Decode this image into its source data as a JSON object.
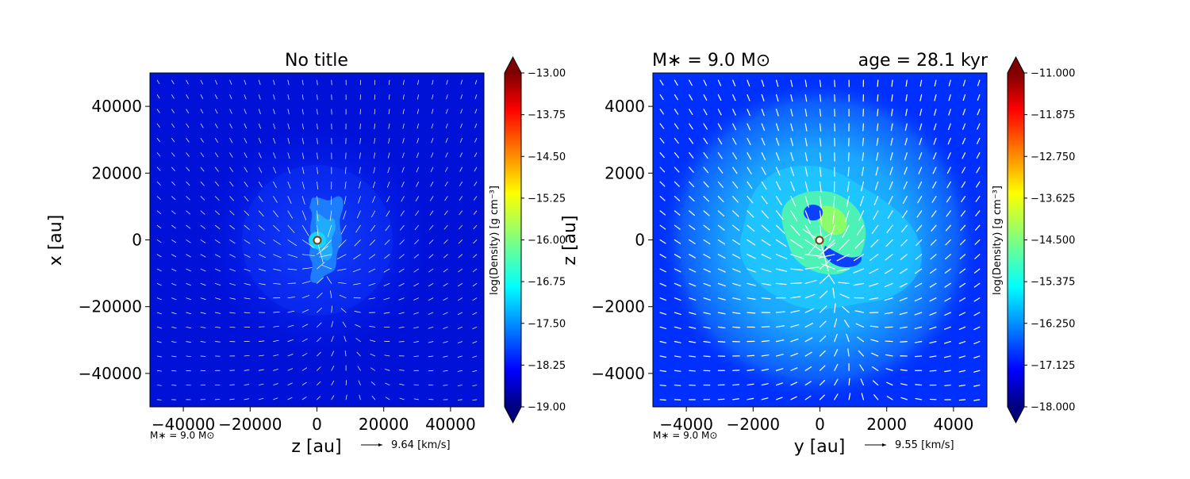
{
  "chart_data": [
    {
      "type": "heatmap",
      "title": "No title",
      "title_left": "",
      "title_right": "",
      "xlabel": "z [au]",
      "ylabel": "x [au]",
      "xlim": [
        -50000,
        50000
      ],
      "ylim": [
        -50000,
        50000
      ],
      "xticks": [
        -40000,
        -20000,
        0,
        20000,
        40000
      ],
      "yticks": [
        -40000,
        -20000,
        0,
        20000,
        40000
      ],
      "xtick_labels": [
        "−40000",
        "−20000",
        "0",
        "20000",
        "40000"
      ],
      "ytick_labels": [
        "−40000",
        "−20000",
        "0",
        "20000",
        "40000"
      ],
      "colorbar": {
        "label": "log(Density) [g cm⁻³]",
        "min": -19.0,
        "max": -13.0,
        "ticks": [
          "−13.00",
          "−13.75",
          "−14.50",
          "−15.25",
          "−16.00",
          "−16.75",
          "−17.50",
          "−18.25",
          "−19.00"
        ]
      },
      "footer_mass": "M∗ = 9.0 M⊙",
      "quiver_key": "9.64 [km/s]",
      "grid": false,
      "colormap": "jet"
    },
    {
      "type": "heatmap",
      "title": "",
      "title_left": "M∗ = 9.0 M⊙",
      "title_right": "age = 28.1 kyr",
      "xlabel": "y [au]",
      "ylabel": "z [au]",
      "xlim": [
        -5000,
        5000
      ],
      "ylim": [
        -5000,
        5000
      ],
      "xticks": [
        -4000,
        -2000,
        0,
        2000,
        4000
      ],
      "yticks": [
        -4000,
        -2000,
        0,
        2000,
        4000
      ],
      "xtick_labels": [
        "−4000",
        "−2000",
        "0",
        "2000",
        "4000"
      ],
      "ytick_labels": [
        "−4000",
        "−2000",
        "0",
        "2000",
        "4000"
      ],
      "colorbar": {
        "label": "log(Density) [g cm⁻³]",
        "min": -18.0,
        "max": -11.0,
        "ticks": [
          "−11.000",
          "−11.875",
          "−12.750",
          "−13.625",
          "−14.500",
          "−15.375",
          "−16.250",
          "−17.125",
          "−18.000"
        ]
      },
      "footer_mass": "M∗ = 9.0 M⊙",
      "quiver_key": "9.55 [km/s]",
      "grid": false,
      "colormap": "jet"
    }
  ]
}
